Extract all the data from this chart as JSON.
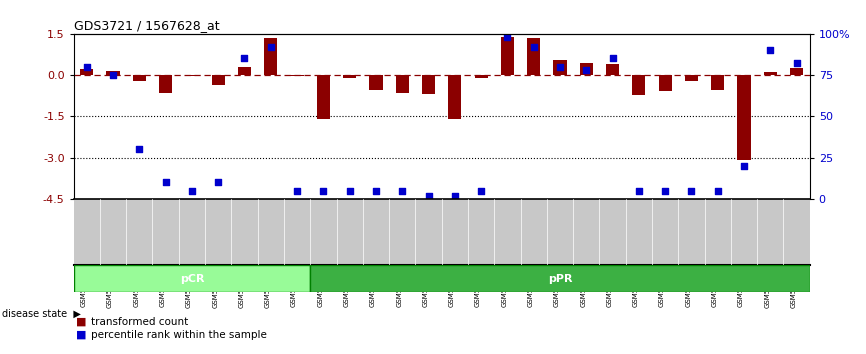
{
  "title": "GDS3721 / 1567628_at",
  "samples": [
    "GSM559062",
    "GSM559063",
    "GSM559064",
    "GSM559065",
    "GSM559066",
    "GSM559067",
    "GSM559068",
    "GSM559069",
    "GSM559042",
    "GSM559043",
    "GSM559044",
    "GSM559045",
    "GSM559046",
    "GSM559047",
    "GSM559048",
    "GSM559049",
    "GSM559050",
    "GSM559051",
    "GSM559052",
    "GSM559053",
    "GSM559054",
    "GSM559055",
    "GSM559056",
    "GSM559057",
    "GSM559058",
    "GSM559059",
    "GSM559060",
    "GSM559061"
  ],
  "transformed_count": [
    0.22,
    0.14,
    -0.22,
    -0.65,
    -0.04,
    -0.38,
    0.3,
    1.35,
    -0.04,
    -1.6,
    -0.12,
    -0.55,
    -0.65,
    -0.7,
    -1.6,
    -0.12,
    1.38,
    1.35,
    0.55,
    0.43,
    0.38,
    -0.73,
    -0.6,
    -0.22,
    -0.55,
    -3.1,
    0.12,
    0.25
  ],
  "percentile_rank": [
    80,
    75,
    30,
    10,
    5,
    10,
    85,
    92,
    5,
    5,
    5,
    5,
    5,
    2,
    2,
    5,
    98,
    92,
    80,
    78,
    85,
    5,
    5,
    5,
    5,
    20,
    90,
    82
  ],
  "pCR_count": 9,
  "pPR_count": 19,
  "bar_color": "#8B0000",
  "dot_color": "#0000CD",
  "ylim_min": -4.5,
  "ylim_max": 1.5,
  "y_ticks": [
    1.5,
    0.0,
    -1.5,
    -3.0,
    -4.5
  ],
  "right_ytick_vals": [
    100,
    75,
    50,
    25,
    0
  ],
  "right_ytick_labels": [
    "100%",
    "75",
    "50",
    "25",
    "0"
  ],
  "dotted_lines": [
    -1.5,
    -3.0
  ],
  "pCR_color": "#98FB98",
  "pPR_color": "#3CB043",
  "label_bar": "transformed count",
  "label_dot": "percentile rank within the sample",
  "bg_samples": "#C8C8C8",
  "fig_width": 8.66,
  "fig_height": 3.54,
  "dpi": 100
}
